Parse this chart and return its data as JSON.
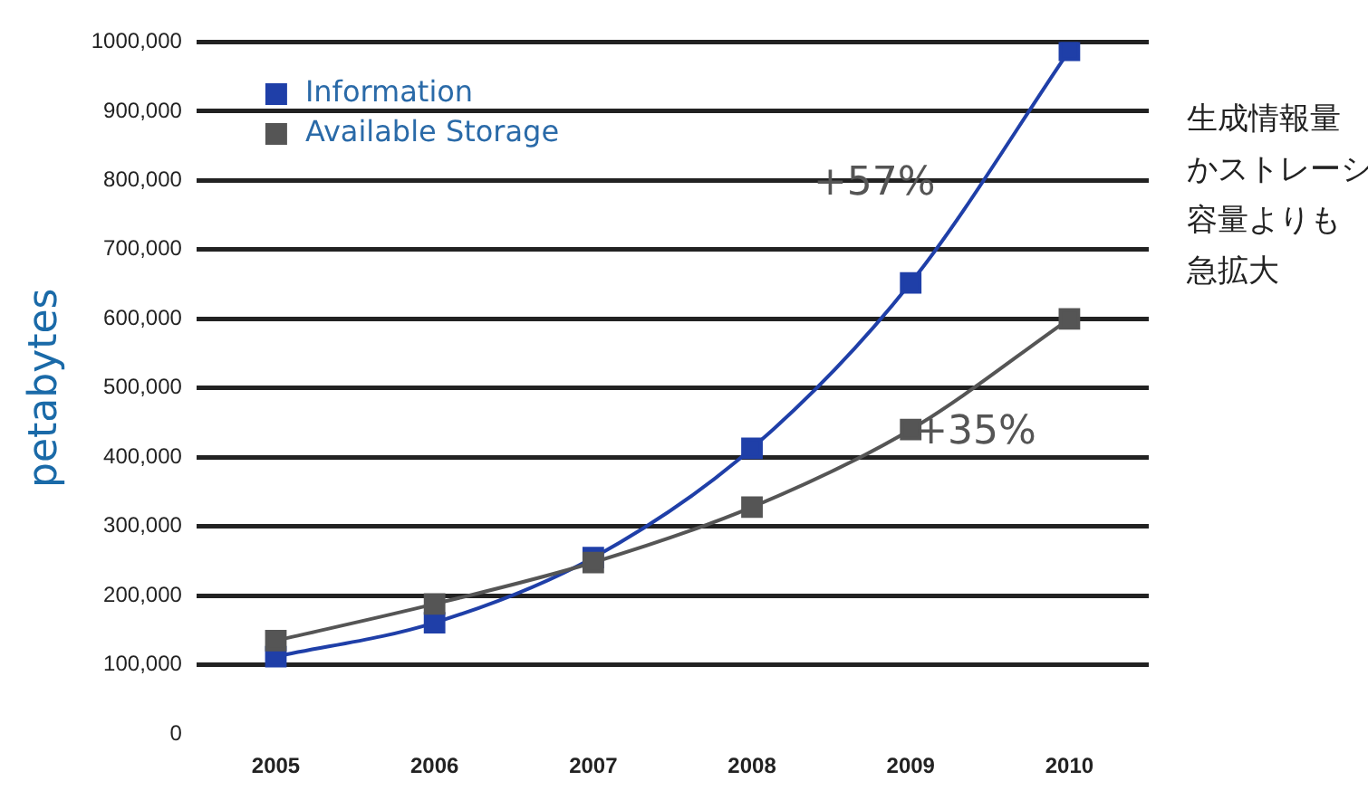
{
  "chart_data": {
    "type": "line",
    "ylabel": "petabytes",
    "categories": [
      "2005",
      "2006",
      "2007",
      "2008",
      "2009",
      "2010"
    ],
    "series": [
      {
        "name": "Information",
        "color": "#1f3fa8",
        "values": [
          112000,
          161000,
          255000,
          413000,
          652000,
          988000
        ]
      },
      {
        "name": "Available Storage",
        "color": "#555555",
        "values": [
          135000,
          188000,
          248000,
          328000,
          440000,
          600000
        ]
      }
    ],
    "ylim": [
      0,
      1000000
    ],
    "yticks": [
      {
        "value": 0,
        "label": "0"
      },
      {
        "value": 100000,
        "label": "100,000"
      },
      {
        "value": 200000,
        "label": "200,000"
      },
      {
        "value": 300000,
        "label": "300,000"
      },
      {
        "value": 400000,
        "label": "400,000"
      },
      {
        "value": 500000,
        "label": "500,000"
      },
      {
        "value": 600000,
        "label": "600,000"
      },
      {
        "value": 700000,
        "label": "700,000"
      },
      {
        "value": 800000,
        "label": "800,000"
      },
      {
        "value": 900000,
        "label": "900,000"
      },
      {
        "value": 1000000,
        "label": "1000,000"
      }
    ],
    "annotations": [
      "+57%",
      "+35%",
      "生成情報量かストレーシ容量よりも急拡大"
    ],
    "grid": "y",
    "legend": "top left",
    "marker": "square",
    "line_style": "solid"
  }
}
